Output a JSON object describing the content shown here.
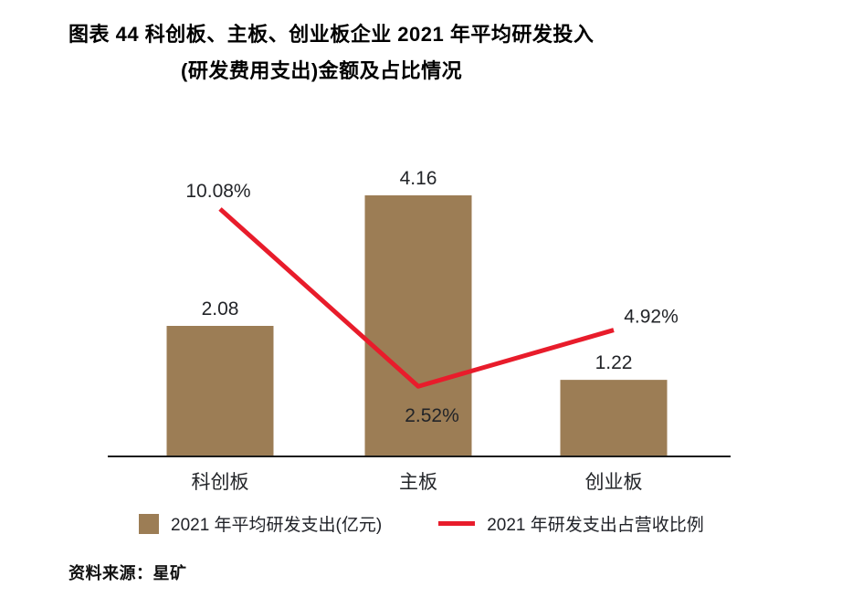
{
  "title": {
    "line1": "图表 44  科创板、主板、创业板企业 2021 年平均研发投入",
    "line2": "(研发费用支出)金额及占比情况"
  },
  "legend": {
    "bar_label": "2021 年平均研发支出(亿元)",
    "line_label": "2021 年研发支出占营收比例"
  },
  "source": "资料来源：星矿",
  "colors": {
    "bar": "#9C7D55",
    "line": "#E81C2B",
    "axis": "#1A1A1A",
    "label": "#222428"
  },
  "chart_data": {
    "type": "bar",
    "subtype": "bar-line-combo",
    "title": "科创板、主板、创业板企业 2021 年平均研发投入(研发费用支出)金额及占比情况",
    "categories": [
      "科创板",
      "主板",
      "创业板"
    ],
    "series": [
      {
        "name": "2021 年平均研发支出(亿元)",
        "type": "bar",
        "unit": "亿元",
        "values": [
          2.08,
          4.16,
          1.22
        ],
        "data_labels": [
          "2.08",
          "4.16",
          "1.22"
        ]
      },
      {
        "name": "2021 年研发支出占营收比例",
        "type": "line",
        "unit": "%",
        "values": [
          10.08,
          2.52,
          4.92
        ],
        "data_labels": [
          "10.08%",
          "2.52%",
          "4.92%"
        ]
      }
    ],
    "xlabel": "",
    "ylabel": "",
    "ylim": [
      0,
      4.6
    ],
    "y2lim": [
      0,
      13
    ],
    "grid": false,
    "legend_position": "bottom"
  }
}
